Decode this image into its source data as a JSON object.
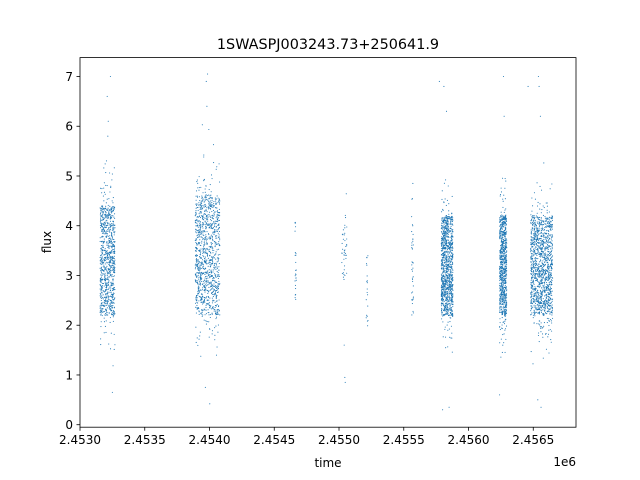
{
  "chart_data": {
    "type": "scatter",
    "title": "1SWASPJ003243.73+250641.9",
    "xlabel": "time",
    "ylabel": "flux",
    "x_offset_label": "1e6",
    "xlim": [
      2453000,
      2456830
    ],
    "ylim": [
      -0.05,
      7.38
    ],
    "x_ticks": [
      2453000,
      2453500,
      2454000,
      2454500,
      2455000,
      2455500,
      2456000,
      2456500
    ],
    "x_tick_labels": [
      "2.4530",
      "2.4535",
      "2.4540",
      "2.4545",
      "2.4550",
      "2.4555",
      "2.4560",
      "2.4565"
    ],
    "y_ticks": [
      0,
      1,
      2,
      3,
      4,
      5,
      6,
      7
    ],
    "y_tick_labels": [
      "0",
      "1",
      "2",
      "3",
      "4",
      "5",
      "6",
      "7"
    ],
    "grid": false,
    "marker_color": "#1f77b4",
    "series": [
      {
        "clusters": [
          {
            "x_range": [
              2453155,
              2453270
            ],
            "y_center": 3.3,
            "y_spread": 1.1,
            "n": 900
          },
          {
            "x_range": [
              2453890,
              2454080
            ],
            "y_center": 3.4,
            "y_spread": 1.2,
            "n": 1100
          },
          {
            "x_range": [
              2454660,
              2454670
            ],
            "y_center": 3.3,
            "y_spread": 0.8,
            "n": 25
          },
          {
            "x_range": [
              2455020,
              2455060
            ],
            "y_center": 3.5,
            "y_spread": 0.6,
            "n": 40
          },
          {
            "x_range": [
              2455210,
              2455225
            ],
            "y_center": 2.6,
            "y_spread": 0.8,
            "n": 20
          },
          {
            "x_range": [
              2455560,
              2455575
            ],
            "y_center": 3.2,
            "y_spread": 1.0,
            "n": 40
          },
          {
            "x_range": [
              2455790,
              2455880
            ],
            "y_center": 3.2,
            "y_spread": 1.0,
            "n": 1100
          },
          {
            "x_range": [
              2456240,
              2456295
            ],
            "y_center": 3.2,
            "y_spread": 1.0,
            "n": 800
          },
          {
            "x_range": [
              2456480,
              2456650
            ],
            "y_center": 3.2,
            "y_spread": 1.0,
            "n": 1300
          }
        ],
        "outliers": [
          [
            2453210,
            6.6
          ],
          [
            2453235,
            7.0
          ],
          [
            2453218,
            6.1
          ],
          [
            2453215,
            5.8
          ],
          [
            2453250,
            0.65
          ],
          [
            2453985,
            7.05
          ],
          [
            2453975,
            6.9
          ],
          [
            2453980,
            6.4
          ],
          [
            2454002,
            0.42
          ],
          [
            2453968,
            0.75
          ],
          [
            2455048,
            0.85
          ],
          [
            2455045,
            0.95
          ],
          [
            2455040,
            1.6
          ],
          [
            2455775,
            6.9
          ],
          [
            2455810,
            6.8
          ],
          [
            2455800,
            0.3
          ],
          [
            2455850,
            0.35
          ],
          [
            2455830,
            6.3
          ],
          [
            2456270,
            7.0
          ],
          [
            2456275,
            6.2
          ],
          [
            2456240,
            0.6
          ],
          [
            2456540,
            7.0
          ],
          [
            2456545,
            6.8
          ],
          [
            2456555,
            6.2
          ],
          [
            2456560,
            0.35
          ],
          [
            2456535,
            0.5
          ],
          [
            2456460,
            6.8
          ]
        ]
      }
    ]
  }
}
